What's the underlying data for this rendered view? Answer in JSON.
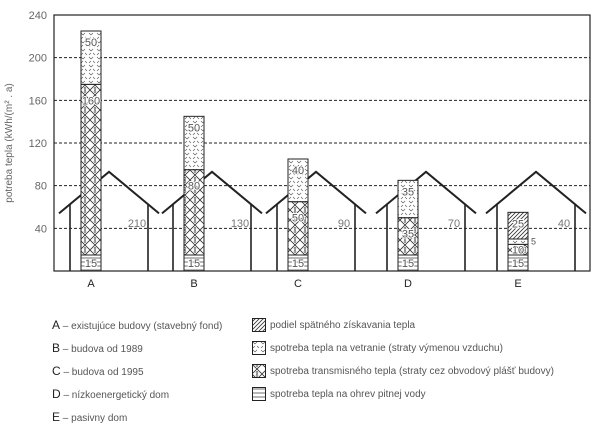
{
  "chart_data": {
    "type": "bar",
    "stacked": true,
    "ylabel": "potreba tepla (kWh/(m² . a)",
    "ylim": [
      0,
      240
    ],
    "yticks": [
      40,
      80,
      120,
      160,
      200,
      240
    ],
    "grid": "dashed horizontal",
    "categories": [
      "A",
      "B",
      "C",
      "D",
      "E"
    ],
    "series": [
      {
        "key": "water",
        "name": "spotreba tepla na ohrev pitnej vody",
        "values": [
          15,
          15,
          15,
          15,
          15
        ],
        "labels": [
          "15",
          "15",
          "15",
          "15",
          "15"
        ]
      },
      {
        "key": "transmission",
        "name": "spotreba transmisného tepla (straty cez obvodový plášť budovy)",
        "values": [
          160,
          80,
          50,
          35,
          10
        ],
        "labels": [
          "160",
          "80",
          "50",
          "35",
          "10"
        ]
      },
      {
        "key": "ventilation",
        "name": "spotreba tepla na vetranie (straty výmenou vzduchu)",
        "values": [
          50,
          50,
          40,
          35,
          5
        ],
        "labels": [
          "50",
          "50",
          "40",
          "35",
          "5"
        ]
      },
      {
        "key": "recovery",
        "name": "podiel spätného získavania tepla",
        "values": [
          0,
          0,
          0,
          0,
          25
        ],
        "labels": [
          "",
          "",
          "",
          "",
          "25"
        ]
      }
    ],
    "net_values": [
      "210",
      "130",
      "90",
      "70",
      "40"
    ],
    "category_legend": [
      {
        "letter": "A",
        "text": "– existujúce budovy (stavebný fond)"
      },
      {
        "letter": "B",
        "text": "– budova od 1989"
      },
      {
        "letter": "C",
        "text": "– budova od 1995"
      },
      {
        "letter": "D",
        "text": "– nízkoenergetický dom"
      },
      {
        "letter": "E",
        "text": "– pasivny dom"
      }
    ],
    "legend_order": [
      "recovery",
      "ventilation",
      "transmission",
      "water"
    ],
    "legend_placement": "bottom"
  }
}
